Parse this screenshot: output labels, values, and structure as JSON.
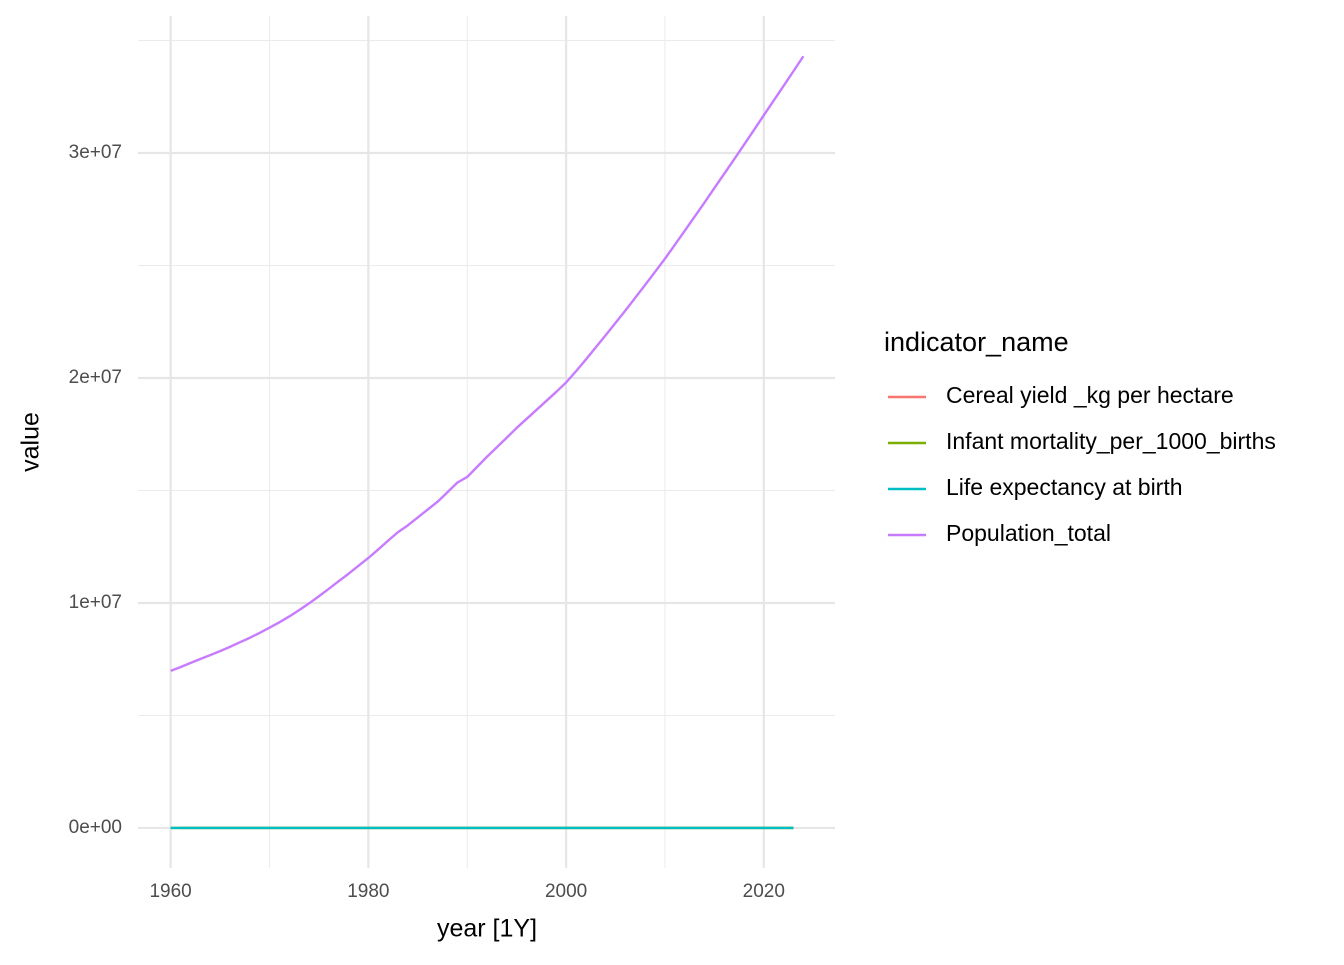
{
  "chart_data": {
    "type": "line",
    "x_label": "year [1Y]",
    "y_label": "value",
    "legend_title": "indicator_name",
    "legend_position": "right",
    "grid": true,
    "xlim": [
      1956.7,
      2027.2
    ],
    "ylim": [
      -1780000,
      36090000
    ],
    "xticks": [
      1960,
      1980,
      2000,
      2020
    ],
    "minor_xticks": [
      1970,
      1990,
      2010
    ],
    "yticks": [
      {
        "value": 0,
        "label": "0e+00"
      },
      {
        "value": 10000000,
        "label": "1e+07"
      },
      {
        "value": 20000000,
        "label": "2e+07"
      },
      {
        "value": 30000000,
        "label": "3e+07"
      }
    ],
    "minor_yticks": [
      5000000,
      15000000,
      25000000,
      35000000
    ],
    "x": [
      1960,
      1961,
      1962,
      1963,
      1964,
      1965,
      1966,
      1967,
      1968,
      1969,
      1970,
      1971,
      1972,
      1973,
      1974,
      1975,
      1976,
      1977,
      1978,
      1979,
      1980,
      1981,
      1982,
      1983,
      1984,
      1985,
      1986,
      1987,
      1988,
      1989,
      1990,
      1991,
      1992,
      1993,
      1994,
      1995,
      1996,
      1997,
      1998,
      1999,
      2000,
      2001,
      2002,
      2003,
      2004,
      2005,
      2006,
      2007,
      2008,
      2009,
      2010,
      2011,
      2012,
      2013,
      2014,
      2015,
      2016,
      2017,
      2018,
      2019,
      2020,
      2021,
      2022,
      2023,
      2024
    ],
    "series": [
      {
        "name": "Cereal yield _kg per hectare",
        "color": "#F8766D",
        "values": [
          null,
          820,
          840,
          860,
          800,
          850,
          870,
          900,
          880,
          910,
          930,
          950,
          900,
          870,
          890,
          910,
          880,
          820,
          800,
          780,
          790,
          760,
          720,
          700,
          980,
          1000,
          1020,
          1050,
          1080,
          1100,
          1050,
          1300,
          1250,
          1320,
          1350,
          1380,
          1400,
          1420,
          1380,
          1350,
          1300,
          1320,
          1400,
          1450,
          1500,
          1550,
          1600,
          1650,
          1700,
          1750,
          1800,
          1850,
          1700,
          1750,
          1800,
          1850,
          1900,
          1950,
          2000,
          2050,
          2100,
          2150,
          2200,
          2250,
          null
        ]
      },
      {
        "name": "Infant mortality_per_1000_births",
        "color": "#7CAE00",
        "values": [
          130,
          128,
          126,
          124,
          122,
          120,
          118,
          116,
          114,
          112,
          110,
          108,
          106,
          104,
          102,
          100,
          99,
          98,
          97,
          96,
          95,
          94,
          93,
          92,
          91,
          90,
          88,
          86,
          84,
          82,
          80,
          79,
          78,
          77,
          76,
          75,
          74,
          73,
          72,
          71,
          70,
          68,
          66,
          64,
          62,
          60,
          58,
          56,
          54,
          52,
          50,
          48,
          46,
          45,
          44,
          43,
          42,
          41,
          40,
          39,
          38,
          37,
          36,
          35,
          null
        ]
      },
      {
        "name": "Life expectancy at birth",
        "color": "#00BFC4",
        "values": [
          45.8,
          46.2,
          46.6,
          47.0,
          47.4,
          47.8,
          48.2,
          48.6,
          49.0,
          49.4,
          49.8,
          50.2,
          50.6,
          51.0,
          51.4,
          51.8,
          52.1,
          52.4,
          52.7,
          53.0,
          53.3,
          53.5,
          53.7,
          53.9,
          54.1,
          54.4,
          54.7,
          55.0,
          55.3,
          55.6,
          55.9,
          56.2,
          56.4,
          56.6,
          56.8,
          57.0,
          57.1,
          57.2,
          57.3,
          57.4,
          57.5,
          57.7,
          57.9,
          58.2,
          58.6,
          59.0,
          59.4,
          59.8,
          60.2,
          60.6,
          61.0,
          61.3,
          61.6,
          61.9,
          62.2,
          62.5,
          62.8,
          63.1,
          63.3,
          63.5,
          63.7,
          63.9,
          64.1,
          64.3,
          null
        ]
      },
      {
        "name": "Population_total",
        "color": "#C77CFF",
        "values": [
          6980000,
          7150000,
          7330000,
          7510000,
          7680000,
          7860000,
          8050000,
          8250000,
          8450000,
          8670000,
          8900000,
          9140000,
          9400000,
          9680000,
          9980000,
          10300000,
          10630000,
          10970000,
          11300000,
          11650000,
          12000000,
          12380000,
          12770000,
          13150000,
          13450000,
          13800000,
          14150000,
          14500000,
          14920000,
          15350000,
          15600000,
          16050000,
          16500000,
          16920000,
          17350000,
          17780000,
          18180000,
          18580000,
          18980000,
          19380000,
          19800000,
          20300000,
          20820000,
          21360000,
          21900000,
          22450000,
          23000000,
          23570000,
          24140000,
          24720000,
          25300000,
          25920000,
          26540000,
          27170000,
          27800000,
          28440000,
          29080000,
          29720000,
          30370000,
          31020000,
          31680000,
          32330000,
          32980000,
          33640000,
          34300000
        ]
      }
    ]
  }
}
